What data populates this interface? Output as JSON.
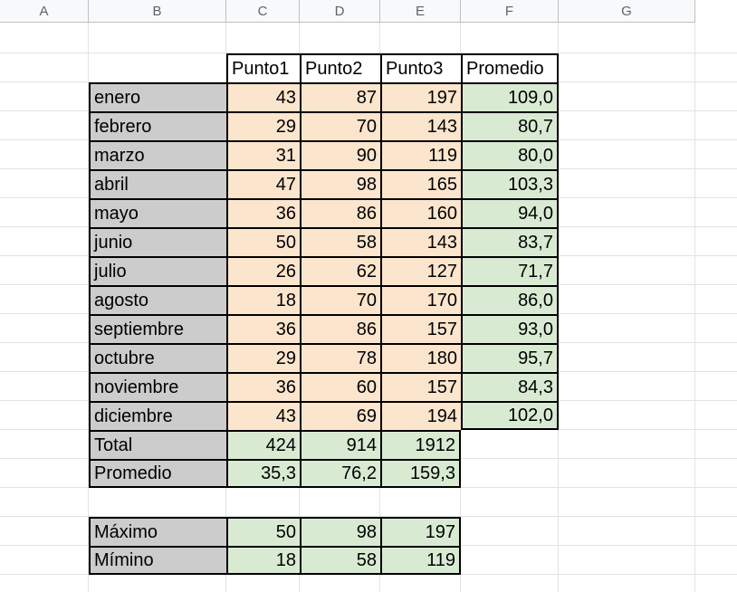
{
  "columns": [
    "A",
    "B",
    "C",
    "D",
    "E",
    "F",
    "G"
  ],
  "table": {
    "headers": [
      "Punto1",
      "Punto2",
      "Punto3",
      "Promedio"
    ],
    "rows": [
      {
        "month": "enero",
        "p1": "43",
        "p2": "87",
        "p3": "197",
        "avg": "109,0"
      },
      {
        "month": "febrero",
        "p1": "29",
        "p2": "70",
        "p3": "143",
        "avg": "80,7"
      },
      {
        "month": "marzo",
        "p1": "31",
        "p2": "90",
        "p3": "119",
        "avg": "80,0"
      },
      {
        "month": "abril",
        "p1": "47",
        "p2": "98",
        "p3": "165",
        "avg": "103,3"
      },
      {
        "month": "mayo",
        "p1": "36",
        "p2": "86",
        "p3": "160",
        "avg": "94,0"
      },
      {
        "month": "junio",
        "p1": "50",
        "p2": "58",
        "p3": "143",
        "avg": "83,7"
      },
      {
        "month": "julio",
        "p1": "26",
        "p2": "62",
        "p3": "127",
        "avg": "71,7"
      },
      {
        "month": "agosto",
        "p1": "18",
        "p2": "70",
        "p3": "170",
        "avg": "86,0"
      },
      {
        "month": "septiembre",
        "p1": "36",
        "p2": "86",
        "p3": "157",
        "avg": "93,0"
      },
      {
        "month": "octubre",
        "p1": "29",
        "p2": "78",
        "p3": "180",
        "avg": "95,7"
      },
      {
        "month": "noviembre",
        "p1": "36",
        "p2": "60",
        "p3": "157",
        "avg": "84,3"
      },
      {
        "month": "diciembre",
        "p1": "43",
        "p2": "69",
        "p3": "194",
        "avg": "102,0"
      }
    ],
    "totals": [
      {
        "label": "Total",
        "p1": "424",
        "p2": "914",
        "p3": "1912"
      },
      {
        "label": "Promedio",
        "p1": "35,3",
        "p2": "76,2",
        "p3": "159,3"
      }
    ]
  },
  "stats": [
    {
      "label": "Máximo",
      "p1": "50",
      "p2": "98",
      "p3": "197"
    },
    {
      "label": "Mímino",
      "p1": "18",
      "p2": "58",
      "p3": "119"
    }
  ],
  "colors": {
    "label_fill": "#cccccc",
    "data_fill": "#fce5cd",
    "result_fill": "#d9ead3",
    "gridline": "#e2e2e2"
  }
}
